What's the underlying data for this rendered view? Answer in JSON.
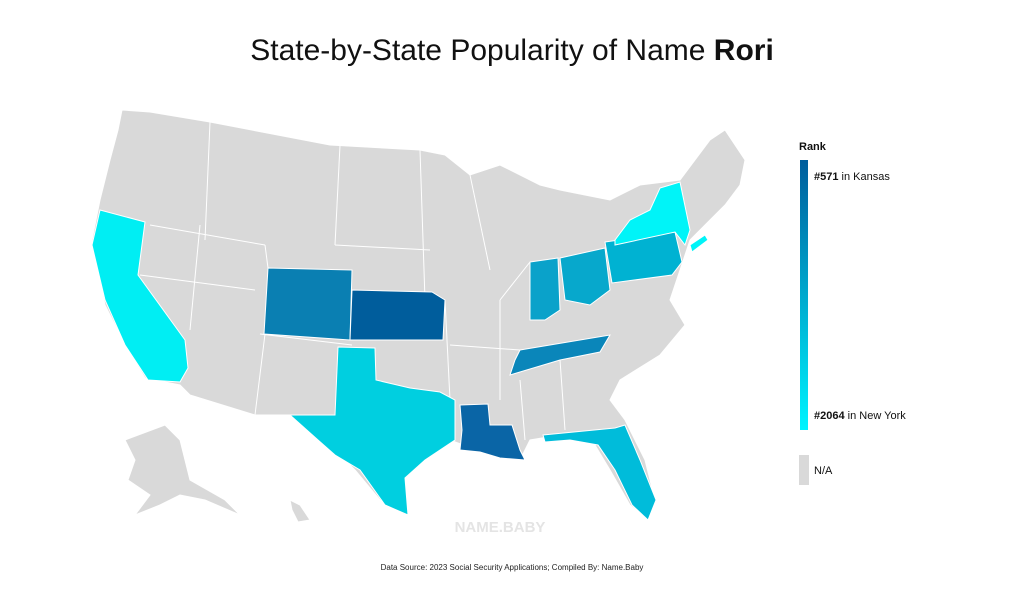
{
  "header": {
    "title": "State-by-State Popularity of Name ",
    "name": "Rori"
  },
  "map": {
    "na_color": "#d9d9d9",
    "state_fills": [
      "#00eef3",
      "#0a7fb2",
      "#005d9c",
      "#00cfe0",
      "#0a65a6",
      "#0a86ba",
      "#0aa2ca",
      "#07a8cc",
      "#00b2d2",
      "#00f4f8",
      "#00f4f8",
      "#00bcda"
    ]
  },
  "legend": {
    "title": "Rank",
    "gradient": [
      "#005d9c",
      "#00f4ff"
    ],
    "max": {
      "rank": "#571",
      "place": " in Kansas"
    },
    "min": {
      "rank": "#2064",
      "place": " in New York"
    },
    "na": "N/A"
  },
  "watermark": "NAME.BABY",
  "footer": "Data Source: 2023 Social Security Applications; Compiled By: Name.Baby"
}
